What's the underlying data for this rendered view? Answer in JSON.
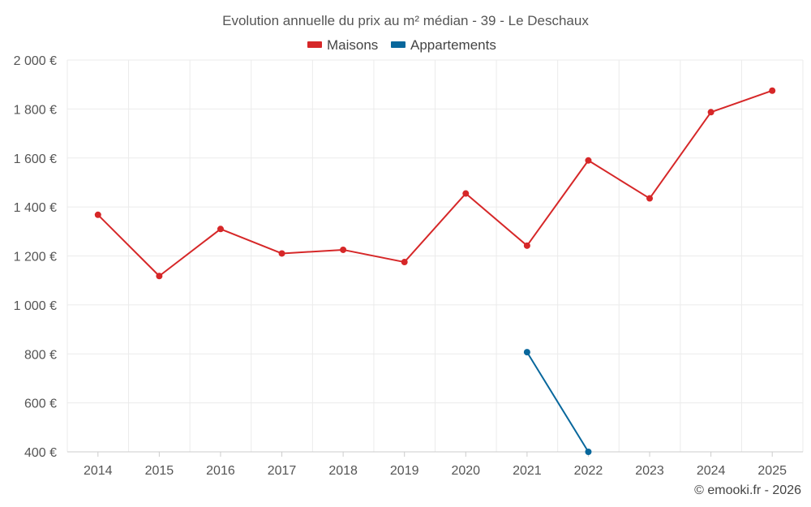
{
  "chart_data": {
    "type": "line",
    "title": "Evolution annuelle du prix au m² médian - 39 - Le Deschaux",
    "categories": [
      "2014",
      "2015",
      "2016",
      "2017",
      "2018",
      "2019",
      "2020",
      "2021",
      "2022",
      "2023",
      "2024",
      "2025"
    ],
    "series": [
      {
        "name": "Maisons",
        "color": "#d62728",
        "values": [
          1368,
          1118,
          1310,
          1210,
          1225,
          1175,
          1455,
          1242,
          1590,
          1435,
          1787,
          1875
        ]
      },
      {
        "name": "Appartements",
        "color": "#08679c",
        "values": [
          null,
          null,
          null,
          null,
          null,
          null,
          null,
          807,
          400,
          null,
          null,
          null
        ]
      }
    ],
    "ylim": [
      400,
      2000
    ],
    "yticks": [
      400,
      600,
      800,
      1000,
      1200,
      1400,
      1600,
      1800,
      2000
    ],
    "ytick_labels": [
      "400 €",
      "600 €",
      "800 €",
      "1 000 €",
      "1 200 €",
      "1 400 €",
      "1 600 €",
      "1 800 €",
      "2 000 €"
    ],
    "xlabel": "",
    "ylabel": "",
    "grid": true,
    "legend_position": "top-center"
  },
  "credit": "© emooki.fr - 2026"
}
